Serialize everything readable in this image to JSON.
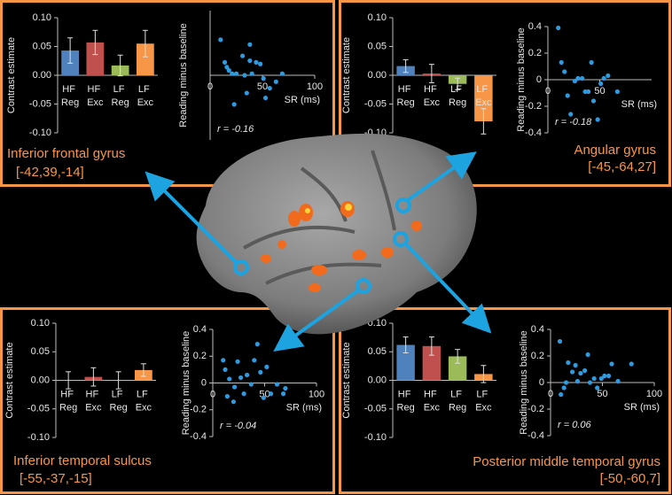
{
  "chart_data": [
    {
      "type": "bar",
      "y_label": "Contrast estimate",
      "categories": [
        "HF Reg",
        "HF Exc",
        "LF Reg",
        "LF Exc"
      ],
      "values": [
        0.043,
        0.057,
        0.017,
        0.055
      ],
      "errors": [
        0.022,
        0.021,
        0.018,
        0.023
      ],
      "colors": [
        "#4f81bd",
        "#c0504d",
        "#9bbb59",
        "#f79646"
      ],
      "ylim": [
        -0.1,
        0.1
      ],
      "yticks": [
        {
          "value": -0.1,
          "label": "-0.10"
        },
        {
          "value": -0.05,
          "label": "-0.05"
        },
        {
          "value": 0,
          "label": "0.00"
        },
        {
          "value": 0.05,
          "label": "0.05"
        },
        {
          "value": 0.1,
          "label": "0.10"
        }
      ]
    },
    {
      "type": "scatter",
      "y_label": "Reading minus baseline",
      "x_label": "SR (ms)",
      "annotation": "r = -0.16",
      "color": "#2e9be0",
      "x": [
        10,
        14,
        16,
        18,
        21,
        23,
        25,
        31,
        33,
        35,
        38,
        38,
        40,
        44,
        48,
        51,
        53,
        57,
        63,
        69
      ],
      "y": [
        0.22,
        0.08,
        0.05,
        0.03,
        0.01,
        -0.18,
        0.01,
        0.12,
        0.0,
        -0.11,
        0.09,
        0.19,
        0.01,
        0.08,
        0.07,
        -0.02,
        -0.14,
        -0.08,
        -0.04,
        0.01
      ],
      "xlim": [
        0,
        100
      ],
      "ylim": [
        -0.4,
        0.4
      ],
      "xticks": [
        0,
        50,
        100
      ]
    },
    {
      "type": "bar",
      "y_label": "Contrast estimate",
      "categories": [
        "HF Reg",
        "HF Exc",
        "LF Reg",
        "LF Exc"
      ],
      "values": [
        0.016,
        0.003,
        -0.015,
        -0.08
      ],
      "errors": [
        0.011,
        0.016,
        0.01,
        0.022
      ],
      "colors": [
        "#4f81bd",
        "#c0504d",
        "#9bbb59",
        "#f79646"
      ],
      "ylim": [
        -0.1,
        0.1
      ],
      "yticks": [
        {
          "value": -0.1,
          "label": "-0.10"
        },
        {
          "value": -0.05,
          "label": "-0.05"
        },
        {
          "value": 0,
          "label": "0.00"
        },
        {
          "value": 0.05,
          "label": "0.05"
        },
        {
          "value": 0.1,
          "label": "0.10"
        }
      ]
    },
    {
      "type": "scatter",
      "y_label": "Reading minus baseline",
      "x_label": "SR (ms)",
      "annotation": "r = -0.18",
      "color": "#2e9be0",
      "x": [
        10,
        13,
        16,
        19,
        22,
        26,
        29,
        33,
        36,
        39,
        42,
        44,
        48,
        51,
        54,
        58,
        67
      ],
      "y": [
        0.39,
        0.13,
        0.06,
        -0.12,
        -0.26,
        -0.01,
        0.01,
        0.01,
        -0.09,
        -0.09,
        0.13,
        -0.16,
        -0.3,
        -0.03,
        0.01,
        0.03,
        -0.09
      ],
      "xlim": [
        0,
        100
      ],
      "ylim": [
        -0.4,
        0.4
      ],
      "xticks": [
        0,
        50
      ],
      "yticks": [
        -0.4,
        -0.2,
        0,
        0.2,
        0.4
      ]
    },
    {
      "type": "bar",
      "y_label": "Contrast estimate",
      "categories": [
        "HF Reg",
        "HF Exc",
        "LF Reg",
        "LF Exc"
      ],
      "values": [
        0.0,
        0.006,
        0.0,
        0.018
      ],
      "errors": [
        0.015,
        0.016,
        0.015,
        0.011
      ],
      "colors": [
        "#4f81bd",
        "#c0504d",
        "#9bbb59",
        "#f79646"
      ],
      "ylim": [
        -0.1,
        0.1
      ],
      "yticks": [
        {
          "value": -0.1,
          "label": "-0.10"
        },
        {
          "value": -0.05,
          "label": "-0.05"
        },
        {
          "value": 0,
          "label": "0.00"
        },
        {
          "value": 0.05,
          "label": "0.05"
        },
        {
          "value": 0.1,
          "label": "0.10"
        }
      ]
    },
    {
      "type": "scatter",
      "y_label": "Reading minus baseline",
      "x_label": "SR (ms)",
      "annotation": "r = -0.04",
      "color": "#2e9be0",
      "x": [
        10,
        12,
        14,
        16,
        20,
        21,
        24,
        27,
        30,
        33,
        37,
        40,
        43,
        46,
        49,
        52,
        56,
        62,
        68,
        70
      ],
      "y": [
        0.17,
        0.1,
        -0.1,
        0.03,
        -0.14,
        -0.03,
        0.16,
        0.04,
        -0.08,
        0.06,
        -0.01,
        0.17,
        0.29,
        0.08,
        -0.11,
        0.12,
        -0.08,
        -0.01,
        -0.08,
        -0.04
      ],
      "xlim": [
        0,
        100
      ],
      "ylim": [
        -0.4,
        0.4
      ],
      "xticks": [
        0,
        50,
        100
      ],
      "yticks": [
        -0.4,
        -0.2,
        0,
        0.2,
        0.4
      ]
    },
    {
      "type": "bar",
      "y_label": "Contrast estimate",
      "categories": [
        "HF Reg",
        "HF Exc",
        "LF Reg",
        "LF Exc"
      ],
      "values": [
        0.062,
        0.06,
        0.042,
        0.011
      ],
      "errors": [
        0.014,
        0.016,
        0.012,
        0.015
      ],
      "colors": [
        "#4f81bd",
        "#c0504d",
        "#9bbb59",
        "#f79646"
      ],
      "ylim": [
        -0.1,
        0.1
      ],
      "yticks": [
        {
          "value": -0.1,
          "label": "-0.10"
        },
        {
          "value": -0.05,
          "label": "-0.05"
        },
        {
          "value": 0,
          "label": "0.00"
        },
        {
          "value": 0.05,
          "label": "0.05"
        },
        {
          "value": 0.1,
          "label": "0.10"
        }
      ]
    },
    {
      "type": "scatter",
      "y_label": "Reading minus baseline",
      "x_label": "SR (ms)",
      "annotation": "r = 0.06",
      "color": "#2e9be0",
      "x": [
        9,
        10,
        13,
        15,
        17,
        21,
        24,
        26,
        29,
        33,
        36,
        38,
        42,
        45,
        49,
        52,
        56,
        59,
        65,
        78
      ],
      "y": [
        0.31,
        -0.09,
        -0.04,
        0,
        0.15,
        0.08,
        0.13,
        0.01,
        0.07,
        0.09,
        0.21,
        0,
        0.03,
        -0.04,
        0.03,
        0.05,
        0.05,
        0.14,
        0.01,
        0.14
      ],
      "xlim": [
        0,
        100
      ],
      "ylim": [
        -0.4,
        0.4
      ],
      "xticks": [
        0,
        50,
        100
      ],
      "yticks": [
        -0.4,
        -0.2,
        0,
        0.2,
        0.4
      ]
    }
  ],
  "regions": [
    {
      "name": "Inferior frontal gyrus",
      "coordinates": "[-42,39,-14]"
    },
    {
      "name": "Angular gyrus",
      "coordinates": "[-45,-64,27]"
    },
    {
      "name": "Inferior temporal sulcus",
      "coordinates": "[-55,-37,-15]"
    },
    {
      "name": "Posterior middle temporal gyrus",
      "coordinates": "[-50,-60,7]"
    }
  ]
}
